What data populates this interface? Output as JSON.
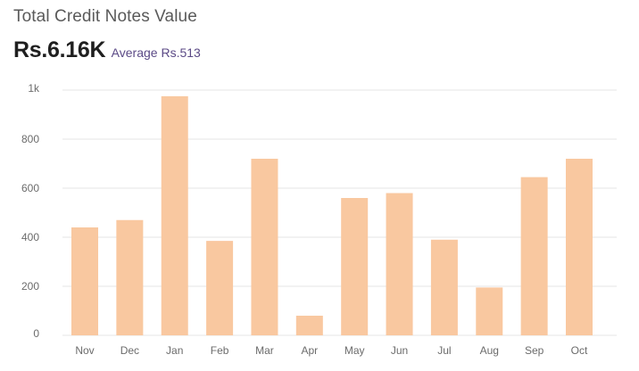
{
  "header": {
    "title": "Total Credit Notes Value",
    "total": "Rs.6.16K",
    "average_label": "Average",
    "average_value": "Rs.513"
  },
  "colors": {
    "bar": "#f9c8a0",
    "grid": "#e6e6e6",
    "tick_text": "#6b6b6b",
    "average_text": "#5b4a86"
  },
  "chart_data": {
    "type": "bar",
    "title": "Total Credit Notes Value",
    "xlabel": "",
    "ylabel": "",
    "categories": [
      "Nov",
      "Dec",
      "Jan",
      "Feb",
      "Mar",
      "Apr",
      "May",
      "Jun",
      "Jul",
      "Aug",
      "Sep",
      "Oct"
    ],
    "values": [
      440,
      470,
      975,
      385,
      720,
      80,
      560,
      580,
      390,
      195,
      645,
      720
    ],
    "ylim": [
      0,
      1000
    ],
    "yticks": [
      {
        "value": 0,
        "label": "0"
      },
      {
        "value": 200,
        "label": "200"
      },
      {
        "value": 400,
        "label": "400"
      },
      {
        "value": 600,
        "label": "600"
      },
      {
        "value": 800,
        "label": "800"
      },
      {
        "value": 1000,
        "label": "1k"
      }
    ],
    "grid": true,
    "legend": "none"
  }
}
